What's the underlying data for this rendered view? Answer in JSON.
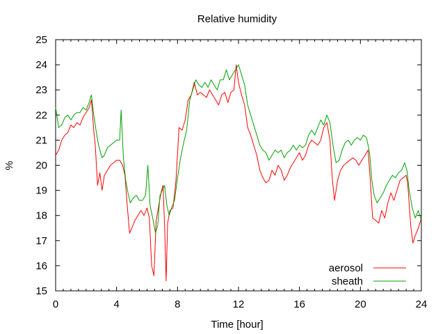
{
  "chart_data": {
    "type": "line",
    "title": "Relative humidity",
    "xlabel": "Time [hour]",
    "ylabel": "%",
    "xlim": [
      0,
      24
    ],
    "ylim": [
      15,
      25
    ],
    "x_ticks": [
      0,
      4,
      8,
      12,
      16,
      20,
      24
    ],
    "y_ticks": [
      15,
      16,
      17,
      18,
      19,
      20,
      21,
      22,
      23,
      24,
      25
    ],
    "grid": false,
    "legend_position": "bottom-right",
    "series": [
      {
        "name": "aerosol",
        "color": "#ff0000",
        "points": [
          [
            0.0,
            20.4
          ],
          [
            0.2,
            20.6
          ],
          [
            0.4,
            21.0
          ],
          [
            0.6,
            21.2
          ],
          [
            0.8,
            21.3
          ],
          [
            1.0,
            21.6
          ],
          [
            1.2,
            21.5
          ],
          [
            1.4,
            21.7
          ],
          [
            1.6,
            21.6
          ],
          [
            1.8,
            21.9
          ],
          [
            2.0,
            22.1
          ],
          [
            2.2,
            22.3
          ],
          [
            2.35,
            22.6
          ],
          [
            2.5,
            21.4
          ],
          [
            2.6,
            20.8
          ],
          [
            2.75,
            19.2
          ],
          [
            2.9,
            19.7
          ],
          [
            3.05,
            19.0
          ],
          [
            3.2,
            19.6
          ],
          [
            3.4,
            19.8
          ],
          [
            3.6,
            20.0
          ],
          [
            3.8,
            20.1
          ],
          [
            4.0,
            20.2
          ],
          [
            4.2,
            20.2
          ],
          [
            4.4,
            20.0
          ],
          [
            4.55,
            19.6
          ],
          [
            4.7,
            18.4
          ],
          [
            4.85,
            17.3
          ],
          [
            5.0,
            17.5
          ],
          [
            5.2,
            17.8
          ],
          [
            5.4,
            18.0
          ],
          [
            5.6,
            18.2
          ],
          [
            5.8,
            18.0
          ],
          [
            6.0,
            18.3
          ],
          [
            6.15,
            17.9
          ],
          [
            6.3,
            16.0
          ],
          [
            6.45,
            15.6
          ],
          [
            6.6,
            17.8
          ],
          [
            6.8,
            18.5
          ],
          [
            6.95,
            19.0
          ],
          [
            7.05,
            19.2
          ],
          [
            7.15,
            17.6
          ],
          [
            7.25,
            15.4
          ],
          [
            7.35,
            17.7
          ],
          [
            7.5,
            18.2
          ],
          [
            7.7,
            18.3
          ],
          [
            7.9,
            19.4
          ],
          [
            8.1,
            21.5
          ],
          [
            8.3,
            21.4
          ],
          [
            8.5,
            21.8
          ],
          [
            8.7,
            22.6
          ],
          [
            8.9,
            22.8
          ],
          [
            9.1,
            23.3
          ],
          [
            9.3,
            22.8
          ],
          [
            9.5,
            22.9
          ],
          [
            9.7,
            22.8
          ],
          [
            9.9,
            22.7
          ],
          [
            10.1,
            23.0
          ],
          [
            10.3,
            22.8
          ],
          [
            10.5,
            22.6
          ],
          [
            10.7,
            22.4
          ],
          [
            10.9,
            22.8
          ],
          [
            11.1,
            22.9
          ],
          [
            11.3,
            22.5
          ],
          [
            11.5,
            22.9
          ],
          [
            11.7,
            23.0
          ],
          [
            11.85,
            24.0
          ],
          [
            12.0,
            23.3
          ],
          [
            12.2,
            22.8
          ],
          [
            12.4,
            22.4
          ],
          [
            12.6,
            21.5
          ],
          [
            12.8,
            21.2
          ],
          [
            13.0,
            20.8
          ],
          [
            13.2,
            20.4
          ],
          [
            13.4,
            19.8
          ],
          [
            13.6,
            19.5
          ],
          [
            13.8,
            19.3
          ],
          [
            14.0,
            19.4
          ],
          [
            14.2,
            19.8
          ],
          [
            14.4,
            19.6
          ],
          [
            14.6,
            20.0
          ],
          [
            14.8,
            19.8
          ],
          [
            15.0,
            19.4
          ],
          [
            15.2,
            19.6
          ],
          [
            15.4,
            19.9
          ],
          [
            15.6,
            20.1
          ],
          [
            15.8,
            20.3
          ],
          [
            16.0,
            20.5
          ],
          [
            16.2,
            20.2
          ],
          [
            16.4,
            20.4
          ],
          [
            16.6,
            20.8
          ],
          [
            16.8,
            21.0
          ],
          [
            17.0,
            20.9
          ],
          [
            17.2,
            20.8
          ],
          [
            17.4,
            21.0
          ],
          [
            17.6,
            21.5
          ],
          [
            17.8,
            21.7
          ],
          [
            18.0,
            21.0
          ],
          [
            18.15,
            19.5
          ],
          [
            18.3,
            18.6
          ],
          [
            18.5,
            19.4
          ],
          [
            18.7,
            19.8
          ],
          [
            18.9,
            20.0
          ],
          [
            19.1,
            20.1
          ],
          [
            19.3,
            20.2
          ],
          [
            19.5,
            20.3
          ],
          [
            19.7,
            20.2
          ],
          [
            19.9,
            20.0
          ],
          [
            20.1,
            20.2
          ],
          [
            20.3,
            20.4
          ],
          [
            20.5,
            20.6
          ],
          [
            20.65,
            19.4
          ],
          [
            20.8,
            17.9
          ],
          [
            21.0,
            17.8
          ],
          [
            21.2,
            17.7
          ],
          [
            21.4,
            18.2
          ],
          [
            21.6,
            17.9
          ],
          [
            21.8,
            18.5
          ],
          [
            22.0,
            18.9
          ],
          [
            22.2,
            18.6
          ],
          [
            22.4,
            19.0
          ],
          [
            22.6,
            19.4
          ],
          [
            22.8,
            19.5
          ],
          [
            23.0,
            19.6
          ],
          [
            23.1,
            19.3
          ],
          [
            23.3,
            17.6
          ],
          [
            23.45,
            16.9
          ],
          [
            23.6,
            17.2
          ],
          [
            23.8,
            17.5
          ],
          [
            24.0,
            17.9
          ]
        ]
      },
      {
        "name": "sheath",
        "color": "#00a000",
        "points": [
          [
            0.0,
            22.3
          ],
          [
            0.2,
            21.5
          ],
          [
            0.4,
            21.6
          ],
          [
            0.6,
            21.9
          ],
          [
            0.8,
            22.0
          ],
          [
            1.0,
            21.8
          ],
          [
            1.2,
            22.0
          ],
          [
            1.4,
            22.1
          ],
          [
            1.6,
            22.1
          ],
          [
            1.8,
            22.3
          ],
          [
            2.0,
            22.2
          ],
          [
            2.2,
            22.5
          ],
          [
            2.35,
            22.8
          ],
          [
            2.5,
            22.0
          ],
          [
            2.6,
            21.6
          ],
          [
            2.75,
            21.0
          ],
          [
            2.9,
            20.6
          ],
          [
            3.05,
            20.3
          ],
          [
            3.2,
            20.4
          ],
          [
            3.4,
            20.7
          ],
          [
            3.6,
            20.8
          ],
          [
            3.8,
            20.9
          ],
          [
            4.0,
            21.0
          ],
          [
            4.2,
            21.0
          ],
          [
            4.3,
            22.2
          ],
          [
            4.45,
            20.3
          ],
          [
            4.6,
            19.4
          ],
          [
            4.75,
            18.9
          ],
          [
            4.9,
            18.5
          ],
          [
            5.1,
            18.7
          ],
          [
            5.3,
            18.8
          ],
          [
            5.5,
            18.6
          ],
          [
            5.7,
            18.6
          ],
          [
            5.9,
            18.8
          ],
          [
            6.05,
            20.0
          ],
          [
            6.2,
            18.4
          ],
          [
            6.4,
            17.8
          ],
          [
            6.55,
            17.3
          ],
          [
            6.7,
            17.6
          ],
          [
            6.85,
            18.8
          ],
          [
            7.0,
            19.0
          ],
          [
            7.15,
            19.2
          ],
          [
            7.3,
            18.4
          ],
          [
            7.45,
            18.0
          ],
          [
            7.6,
            18.3
          ],
          [
            7.8,
            18.6
          ],
          [
            8.0,
            19.5
          ],
          [
            8.2,
            20.3
          ],
          [
            8.4,
            20.9
          ],
          [
            8.6,
            21.4
          ],
          [
            8.8,
            22.6
          ],
          [
            9.0,
            23.0
          ],
          [
            9.2,
            23.4
          ],
          [
            9.4,
            23.2
          ],
          [
            9.6,
            23.1
          ],
          [
            9.8,
            23.3
          ],
          [
            10.0,
            23.1
          ],
          [
            10.2,
            23.4
          ],
          [
            10.4,
            23.2
          ],
          [
            10.6,
            23.0
          ],
          [
            10.8,
            23.4
          ],
          [
            11.0,
            23.4
          ],
          [
            11.2,
            23.8
          ],
          [
            11.4,
            23.4
          ],
          [
            11.6,
            23.6
          ],
          [
            11.8,
            23.8
          ],
          [
            12.0,
            24.0
          ],
          [
            12.2,
            23.6
          ],
          [
            12.4,
            23.2
          ],
          [
            12.6,
            22.4
          ],
          [
            12.8,
            22.0
          ],
          [
            13.0,
            21.6
          ],
          [
            13.2,
            21.2
          ],
          [
            13.4,
            20.8
          ],
          [
            13.6,
            20.6
          ],
          [
            13.8,
            20.5
          ],
          [
            14.0,
            20.2
          ],
          [
            14.2,
            20.4
          ],
          [
            14.4,
            20.6
          ],
          [
            14.6,
            20.5
          ],
          [
            14.8,
            20.6
          ],
          [
            15.0,
            20.3
          ],
          [
            15.2,
            20.5
          ],
          [
            15.4,
            20.6
          ],
          [
            15.6,
            20.8
          ],
          [
            15.8,
            20.6
          ],
          [
            16.0,
            20.8
          ],
          [
            16.2,
            20.7
          ],
          [
            16.4,
            20.8
          ],
          [
            16.6,
            21.2
          ],
          [
            16.8,
            21.4
          ],
          [
            17.0,
            21.2
          ],
          [
            17.2,
            21.5
          ],
          [
            17.4,
            21.8
          ],
          [
            17.6,
            21.6
          ],
          [
            17.8,
            22.0
          ],
          [
            18.0,
            21.7
          ],
          [
            18.2,
            20.8
          ],
          [
            18.4,
            20.1
          ],
          [
            18.6,
            20.2
          ],
          [
            18.8,
            20.6
          ],
          [
            19.0,
            20.9
          ],
          [
            19.2,
            21.0
          ],
          [
            19.4,
            20.8
          ],
          [
            19.6,
            21.0
          ],
          [
            19.8,
            21.1
          ],
          [
            20.0,
            21.0
          ],
          [
            20.2,
            21.2
          ],
          [
            20.4,
            21.1
          ],
          [
            20.6,
            20.5
          ],
          [
            20.75,
            19.4
          ],
          [
            20.9,
            18.8
          ],
          [
            21.1,
            18.5
          ],
          [
            21.3,
            18.7
          ],
          [
            21.5,
            18.9
          ],
          [
            21.7,
            19.2
          ],
          [
            21.9,
            19.4
          ],
          [
            22.1,
            19.6
          ],
          [
            22.3,
            19.5
          ],
          [
            22.5,
            19.7
          ],
          [
            22.7,
            19.8
          ],
          [
            22.9,
            20.1
          ],
          [
            23.05,
            19.8
          ],
          [
            23.2,
            19.0
          ],
          [
            23.4,
            18.3
          ],
          [
            23.6,
            17.9
          ],
          [
            23.8,
            18.2
          ],
          [
            24.0,
            17.8
          ]
        ]
      }
    ]
  }
}
